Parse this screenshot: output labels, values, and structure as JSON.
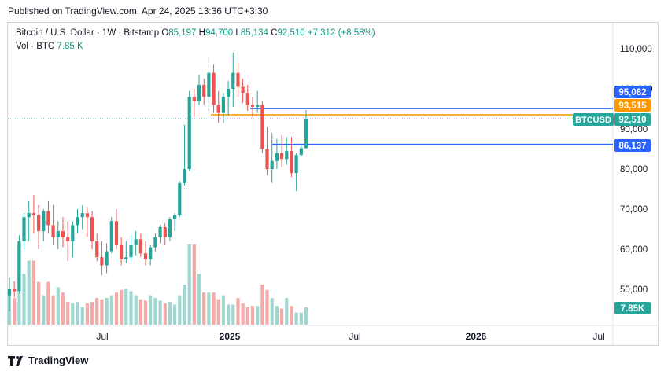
{
  "published": "Published on TradingView.com, Apr 24, 2025 13:36 UTC+3:30",
  "legend": {
    "symbol": "Bitcoin / U.S. Dollar · 1W · Bitstamp",
    "open_label": "O",
    "open": "85,197",
    "high_label": "H",
    "high": "94,700",
    "low_label": "L",
    "low": "85,134",
    "close_label": "C",
    "close": "92,510",
    "change": "+7,312 (+8.58%)",
    "vol_label": "Vol · BTC",
    "vol": "7.85 K"
  },
  "colors": {
    "up": "#26a69a",
    "down": "#ef5350",
    "up_text": "#089981",
    "blue": "#2962ff",
    "orange": "#ff9800",
    "vol_up": "#9fd7d0",
    "vol_down": "#f5aaa8"
  },
  "footer": {
    "brand": "TradingView",
    "logo_icon": "tradingview-logo-icon"
  },
  "chart_data": {
    "type": "candlestick",
    "symbol": "BTCUSD",
    "timeframe": "1W",
    "y_axis": {
      "ticks": [
        "110,000",
        "100,000",
        "90,000",
        "80,000",
        "70,000",
        "60,000",
        "50,000"
      ],
      "tick_values": [
        110000,
        100000,
        90000,
        80000,
        70000,
        60000,
        50000
      ],
      "range": [
        42000,
        114000
      ]
    },
    "x_axis": {
      "ticks": [
        "Jul",
        "2025",
        "Jul",
        "2026",
        "Jul"
      ]
    },
    "price_labels": [
      {
        "name": "upper-line",
        "text": "95,082",
        "value": 95082,
        "color": "#2962ff"
      },
      {
        "name": "orange-line",
        "text": "93,515",
        "value": 93515,
        "color": "#ff9800"
      },
      {
        "name": "last-price",
        "symbol": "BTCUSD",
        "text": "92,510",
        "value": 92510,
        "color": "#26a69a"
      },
      {
        "name": "lower-line",
        "text": "86,137",
        "value": 86137,
        "color": "#2962ff"
      },
      {
        "name": "volume",
        "text": "7.85K",
        "color": "#26a69a"
      }
    ],
    "candles": [
      {
        "o": 48500,
        "h": 53000,
        "l": 44500,
        "c": 50000
      },
      {
        "o": 50000,
        "h": 52000,
        "l": 48000,
        "c": 49500
      },
      {
        "o": 49500,
        "h": 63500,
        "l": 49000,
        "c": 62000
      },
      {
        "o": 62000,
        "h": 69000,
        "l": 60000,
        "c": 68000
      },
      {
        "o": 68000,
        "h": 72000,
        "l": 62000,
        "c": 69000
      },
      {
        "o": 69000,
        "h": 73500,
        "l": 64000,
        "c": 68500
      },
      {
        "o": 68500,
        "h": 71000,
        "l": 60000,
        "c": 64500
      },
      {
        "o": 64500,
        "h": 70000,
        "l": 62000,
        "c": 69500
      },
      {
        "o": 69500,
        "h": 72000,
        "l": 64000,
        "c": 66000
      },
      {
        "o": 66000,
        "h": 71000,
        "l": 61000,
        "c": 63000
      },
      {
        "o": 63000,
        "h": 67000,
        "l": 60000,
        "c": 64500
      },
      {
        "o": 64500,
        "h": 68000,
        "l": 60500,
        "c": 63000
      },
      {
        "o": 63000,
        "h": 67000,
        "l": 57000,
        "c": 62000
      },
      {
        "o": 62000,
        "h": 67000,
        "l": 58000,
        "c": 66000
      },
      {
        "o": 66000,
        "h": 70000,
        "l": 64000,
        "c": 68000
      },
      {
        "o": 68000,
        "h": 71000,
        "l": 65000,
        "c": 69000
      },
      {
        "o": 69000,
        "h": 70500,
        "l": 63000,
        "c": 68000
      },
      {
        "o": 68000,
        "h": 69500,
        "l": 60000,
        "c": 62000
      },
      {
        "o": 62000,
        "h": 64000,
        "l": 57000,
        "c": 58000
      },
      {
        "o": 58000,
        "h": 62000,
        "l": 53500,
        "c": 56000
      },
      {
        "o": 56000,
        "h": 61500,
        "l": 54000,
        "c": 59500
      },
      {
        "o": 59500,
        "h": 68000,
        "l": 59000,
        "c": 67000
      },
      {
        "o": 67000,
        "h": 70000,
        "l": 60000,
        "c": 61000
      },
      {
        "o": 61000,
        "h": 63000,
        "l": 56000,
        "c": 57500
      },
      {
        "o": 57500,
        "h": 62000,
        "l": 56500,
        "c": 58000
      },
      {
        "o": 58000,
        "h": 63500,
        "l": 57000,
        "c": 61000
      },
      {
        "o": 61000,
        "h": 64500,
        "l": 58500,
        "c": 62500
      },
      {
        "o": 62500,
        "h": 64000,
        "l": 58000,
        "c": 59000
      },
      {
        "o": 59000,
        "h": 62000,
        "l": 56000,
        "c": 57500
      },
      {
        "o": 57500,
        "h": 61000,
        "l": 56000,
        "c": 60500
      },
      {
        "o": 60500,
        "h": 64000,
        "l": 59500,
        "c": 63000
      },
      {
        "o": 63000,
        "h": 66000,
        "l": 61500,
        "c": 65500
      },
      {
        "o": 65500,
        "h": 66500,
        "l": 61000,
        "c": 63000
      },
      {
        "o": 63000,
        "h": 68000,
        "l": 62000,
        "c": 67500
      },
      {
        "o": 67500,
        "h": 69000,
        "l": 64500,
        "c": 68500
      },
      {
        "o": 68500,
        "h": 77000,
        "l": 68000,
        "c": 76500
      },
      {
        "o": 76500,
        "h": 91000,
        "l": 76000,
        "c": 80000
      },
      {
        "o": 80000,
        "h": 99500,
        "l": 79500,
        "c": 98000
      },
      {
        "o": 98000,
        "h": 100000,
        "l": 93000,
        "c": 97000
      },
      {
        "o": 97000,
        "h": 103500,
        "l": 96000,
        "c": 101000
      },
      {
        "o": 101000,
        "h": 102500,
        "l": 96000,
        "c": 98000
      },
      {
        "o": 98000,
        "h": 108000,
        "l": 94500,
        "c": 104000
      },
      {
        "o": 104000,
        "h": 106000,
        "l": 94000,
        "c": 96000
      },
      {
        "o": 96000,
        "h": 99500,
        "l": 91500,
        "c": 94000
      },
      {
        "o": 94000,
        "h": 99000,
        "l": 91500,
        "c": 98000
      },
      {
        "o": 98000,
        "h": 102000,
        "l": 93500,
        "c": 100000
      },
      {
        "o": 100000,
        "h": 109000,
        "l": 95500,
        "c": 104000
      },
      {
        "o": 104000,
        "h": 106500,
        "l": 98000,
        "c": 100500
      },
      {
        "o": 100500,
        "h": 102500,
        "l": 96500,
        "c": 99000
      },
      {
        "o": 99000,
        "h": 101000,
        "l": 94500,
        "c": 96000
      },
      {
        "o": 96000,
        "h": 98000,
        "l": 93000,
        "c": 95500
      },
      {
        "o": 95500,
        "h": 99500,
        "l": 94000,
        "c": 96000
      },
      {
        "o": 96000,
        "h": 97000,
        "l": 84000,
        "c": 85000
      },
      {
        "o": 85000,
        "h": 90500,
        "l": 78500,
        "c": 80000
      },
      {
        "o": 80000,
        "h": 89000,
        "l": 76500,
        "c": 82000
      },
      {
        "o": 82000,
        "h": 87500,
        "l": 80000,
        "c": 84000
      },
      {
        "o": 84000,
        "h": 88500,
        "l": 80500,
        "c": 82500
      },
      {
        "o": 82500,
        "h": 88000,
        "l": 81000,
        "c": 84500
      },
      {
        "o": 84500,
        "h": 88000,
        "l": 78000,
        "c": 79000
      },
      {
        "o": 79000,
        "h": 84000,
        "l": 74500,
        "c": 83500
      },
      {
        "o": 83500,
        "h": 86000,
        "l": 83000,
        "c": 85200
      },
      {
        "o": 85197,
        "h": 94700,
        "l": 85134,
        "c": 92510
      }
    ],
    "volume_fraction": [
      0.24,
      0.2,
      0.24,
      0.38,
      0.48,
      0.48,
      0.32,
      0.22,
      0.32,
      0.22,
      0.28,
      0.24,
      0.17,
      0.16,
      0.17,
      0.13,
      0.16,
      0.17,
      0.2,
      0.19,
      0.2,
      0.22,
      0.24,
      0.26,
      0.27,
      0.25,
      0.22,
      0.19,
      0.18,
      0.22,
      0.2,
      0.18,
      0.16,
      0.17,
      0.15,
      0.22,
      0.3,
      0.6,
      0.6,
      0.38,
      0.24,
      0.24,
      0.24,
      0.19,
      0.22,
      0.15,
      0.15,
      0.2,
      0.16,
      0.13,
      0.14,
      0.14,
      0.3,
      0.26,
      0.2,
      0.14,
      0.12,
      0.2,
      0.14,
      0.09,
      0.09,
      0.13
    ]
  }
}
